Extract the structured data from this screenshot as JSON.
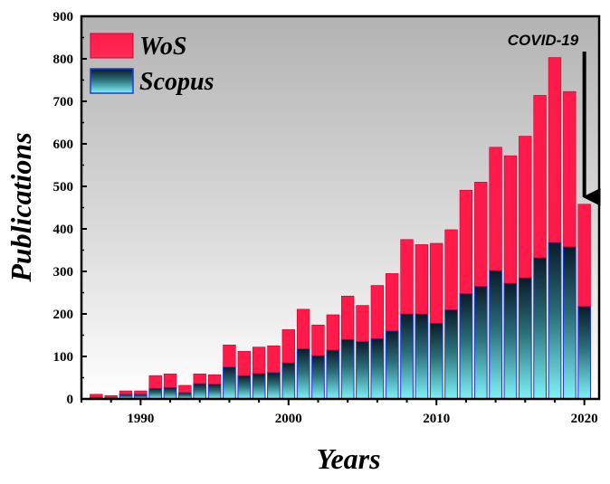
{
  "chart_data": {
    "type": "bar",
    "stacked": true,
    "title": "",
    "xlabel": "Years",
    "ylabel": "Publications",
    "xlim": [
      1986,
      2021
    ],
    "ylim": [
      0,
      900
    ],
    "yticks": [
      0,
      100,
      200,
      300,
      400,
      500,
      600,
      700,
      800,
      900
    ],
    "xticks": [
      1990,
      2000,
      2010,
      2020
    ],
    "categories": [
      1987,
      1988,
      1989,
      1990,
      1991,
      1992,
      1993,
      1994,
      1995,
      1996,
      1997,
      1998,
      1999,
      2000,
      2001,
      2002,
      2003,
      2004,
      2005,
      2006,
      2007,
      2008,
      2009,
      2010,
      2011,
      2012,
      2013,
      2014,
      2015,
      2016,
      2017,
      2018,
      2019,
      2020
    ],
    "series": [
      {
        "name": "Scopus",
        "color_top": "#0a1a28",
        "color_bottom": "#7ef3f7",
        "values": [
          4,
          3,
          11,
          11,
          25,
          27,
          15,
          36,
          35,
          75,
          55,
          60,
          62,
          85,
          118,
          102,
          115,
          140,
          135,
          142,
          160,
          200,
          200,
          178,
          210,
          248,
          265,
          302,
          272,
          285,
          332,
          368,
          358,
          218
        ]
      },
      {
        "name": "WoS",
        "color": "#ff1a4a",
        "values": [
          7,
          5,
          8,
          8,
          30,
          32,
          17,
          23,
          22,
          52,
          57,
          62,
          63,
          78,
          93,
          72,
          83,
          102,
          85,
          125,
          135,
          175,
          163,
          188,
          188,
          243,
          245,
          290,
          300,
          333,
          382,
          435,
          365,
          240
        ]
      }
    ],
    "legend": {
      "position": "top-left",
      "items": [
        "WoS",
        "Scopus"
      ]
    },
    "annotations": [
      {
        "text": "COVID-19",
        "points_to": 2020,
        "arrow": "down"
      }
    ]
  }
}
